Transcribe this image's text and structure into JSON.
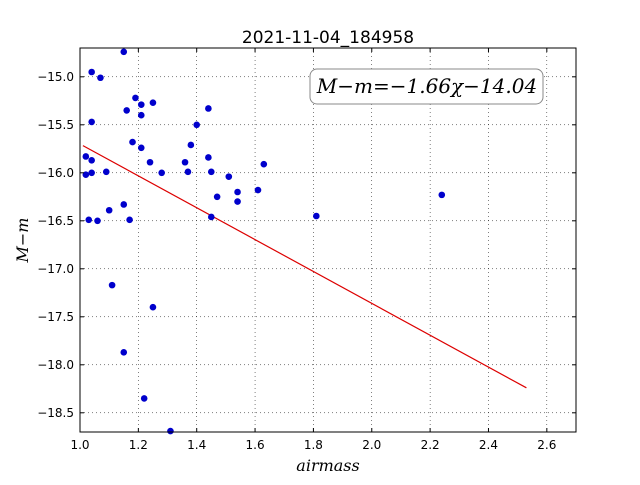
{
  "chart_data": {
    "type": "scatter",
    "title": "2021-11-04_184958",
    "xlabel": "airmass",
    "ylabel": "M−m",
    "xlim": [
      1.0,
      2.7
    ],
    "ylim": [
      -14.7,
      -18.7
    ],
    "xticks": [
      "1.0",
      "1.2",
      "1.4",
      "1.6",
      "1.8",
      "2.0",
      "2.2",
      "2.4",
      "2.6"
    ],
    "yticks": [
      "−15.0",
      "−15.5",
      "−16.0",
      "−16.5",
      "−17.0",
      "−17.5",
      "−18.0",
      "−18.5"
    ],
    "grid": true,
    "annotation": "M−m=−1.66χ−14.04",
    "colors": {
      "points": "#0000cc",
      "fit": "#dd0000"
    },
    "points": [
      [
        1.15,
        -14.74
      ],
      [
        1.04,
        -14.95
      ],
      [
        1.07,
        -15.01
      ],
      [
        1.19,
        -15.22
      ],
      [
        1.25,
        -15.27
      ],
      [
        1.21,
        -15.29
      ],
      [
        1.16,
        -15.35
      ],
      [
        1.21,
        -15.4
      ],
      [
        1.44,
        -15.33
      ],
      [
        1.04,
        -15.47
      ],
      [
        1.4,
        -15.5
      ],
      [
        1.18,
        -15.68
      ],
      [
        1.38,
        -15.71
      ],
      [
        1.21,
        -15.74
      ],
      [
        1.02,
        -15.83
      ],
      [
        1.04,
        -15.87
      ],
      [
        1.24,
        -15.89
      ],
      [
        1.36,
        -15.89
      ],
      [
        1.44,
        -15.84
      ],
      [
        1.63,
        -15.91
      ],
      [
        1.04,
        -16.0
      ],
      [
        1.02,
        -16.02
      ],
      [
        1.09,
        -15.99
      ],
      [
        1.28,
        -16.0
      ],
      [
        1.37,
        -15.99
      ],
      [
        1.45,
        -15.99
      ],
      [
        1.51,
        -16.04
      ],
      [
        1.54,
        -16.2
      ],
      [
        1.61,
        -16.18
      ],
      [
        1.47,
        -16.25
      ],
      [
        1.54,
        -16.3
      ],
      [
        1.15,
        -16.33
      ],
      [
        1.1,
        -16.39
      ],
      [
        1.03,
        -16.49
      ],
      [
        1.06,
        -16.5
      ],
      [
        1.17,
        -16.49
      ],
      [
        1.45,
        -16.46
      ],
      [
        1.81,
        -16.45
      ],
      [
        2.24,
        -16.23
      ],
      [
        1.11,
        -17.17
      ],
      [
        1.25,
        -17.4
      ],
      [
        1.15,
        -17.87
      ],
      [
        1.22,
        -18.35
      ],
      [
        1.31,
        -18.69
      ]
    ],
    "fit": {
      "slope": -1.66,
      "intercept": -14.04,
      "x_range": [
        1.01,
        2.53
      ]
    }
  }
}
